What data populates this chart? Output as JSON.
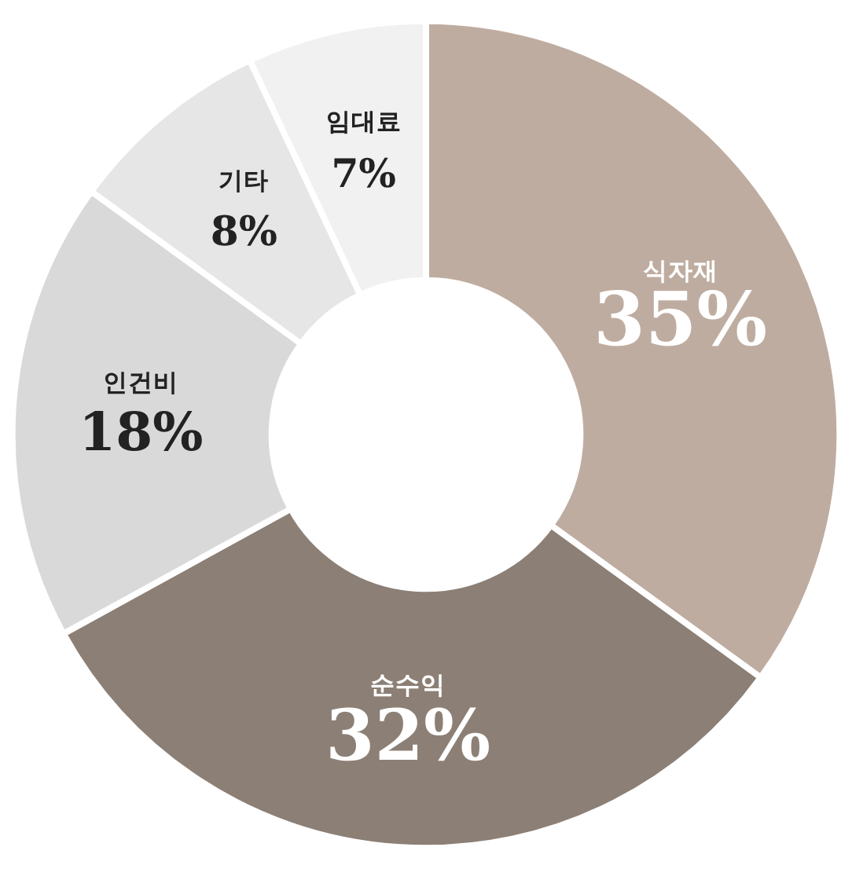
{
  "chart_data": {
    "type": "donut",
    "categories": [
      "식자재",
      "순수익",
      "인건비",
      "기타",
      "임대료"
    ],
    "values": [
      35,
      32,
      18,
      8,
      7
    ],
    "colors": [
      "#bfaca0",
      "#8c7f75",
      "#d9d9d9",
      "#e6e6e6",
      "#f0f1f0"
    ],
    "value_labels": [
      "35%",
      "32%",
      "18%",
      "8%",
      "7%"
    ]
  }
}
